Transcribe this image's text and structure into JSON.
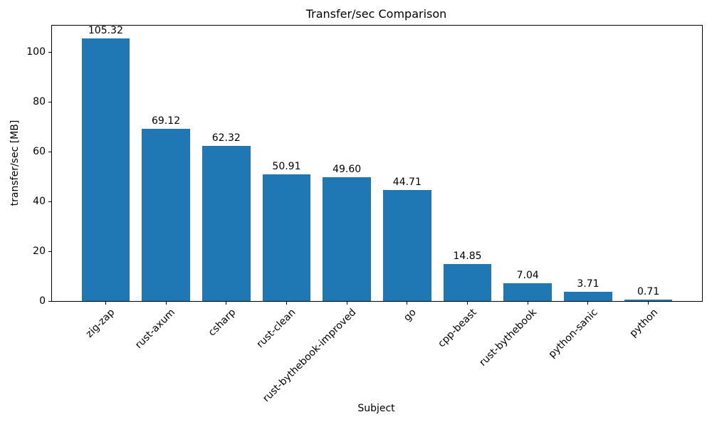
{
  "chart_data": {
    "type": "bar",
    "title": "Transfer/sec Comparison",
    "xlabel": "Subject",
    "ylabel": "transfer/sec [MB]",
    "categories": [
      "zig-zap",
      "rust-axum",
      "csharp",
      "rust-clean",
      "rust-bythebook-improved",
      "go",
      "cpp-beast",
      "rust-bythebook",
      "python-sanic",
      "python"
    ],
    "values": [
      105.32,
      69.12,
      62.32,
      50.91,
      49.6,
      44.71,
      14.85,
      7.04,
      3.71,
      0.71
    ],
    "bar_labels": [
      "105.32",
      "69.12",
      "62.32",
      "50.91",
      "49.60",
      "44.71",
      "14.85",
      "7.04",
      "3.71",
      "0.71"
    ],
    "y_ticks": [
      0,
      20,
      40,
      60,
      80,
      100
    ],
    "ylim": [
      0,
      110.6
    ],
    "bar_color": "#1f77b4",
    "bar_width_frac": 0.8,
    "x_pad": 0.89,
    "grid": false,
    "legend": null,
    "x_label_rotation_deg": 45
  }
}
